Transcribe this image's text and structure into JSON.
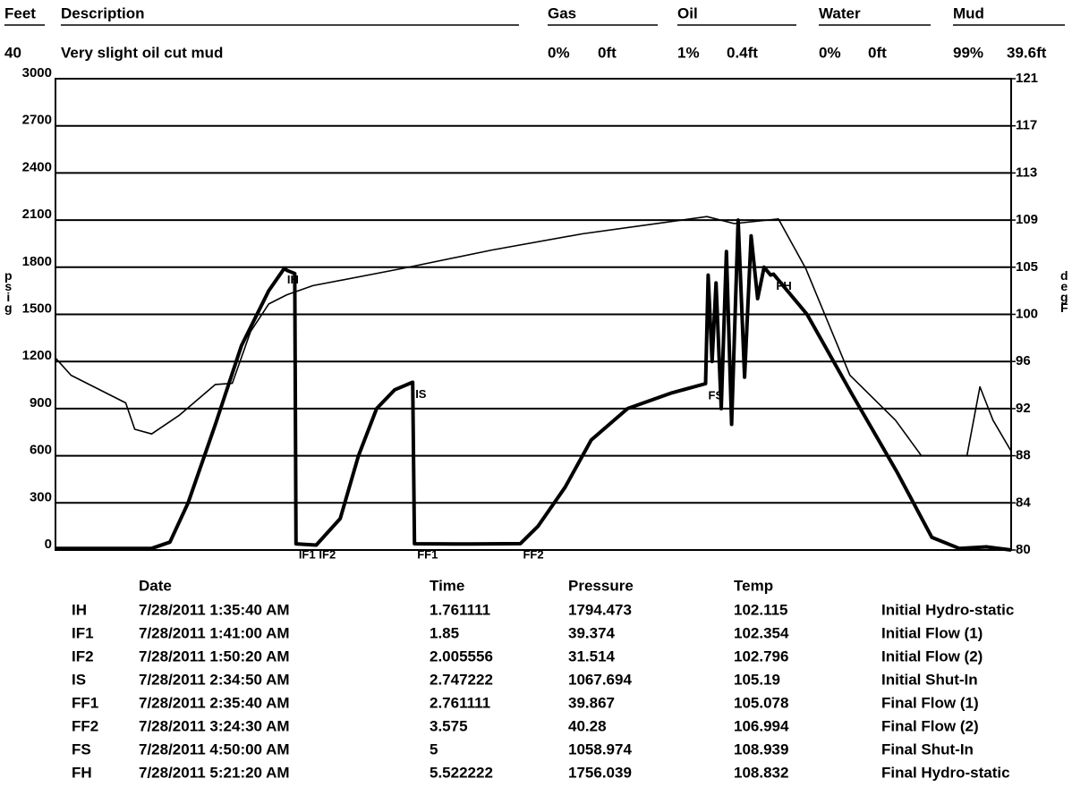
{
  "recovery": {
    "header": [
      "Feet",
      "Description",
      "Gas",
      "Oil",
      "Water",
      "Mud"
    ],
    "row": [
      "40",
      "Very slight oil cut mud",
      "0%",
      "0ft",
      "1%",
      "0.4ft",
      "0%",
      "0ft",
      "99%",
      "39.6ft"
    ]
  },
  "chart_data": {
    "type": "line",
    "xlim": [
      0,
      7.35
    ],
    "ylim": [
      0,
      3000
    ],
    "yticks": [
      0,
      300,
      600,
      900,
      1200,
      1500,
      1800,
      2100,
      2400,
      2700,
      3000
    ],
    "y2lim": [
      80,
      121
    ],
    "y2ticks": [
      80,
      {
        "value": 84.1,
        "label": "84"
      },
      {
        "value": 88.2,
        "label": "88"
      },
      {
        "value": 92.3,
        "label": "92"
      },
      {
        "value": 96.4,
        "label": "96"
      },
      {
        "value": 100.5,
        "label": "100"
      },
      {
        "value": 104.6,
        "label": "105"
      },
      {
        "value": 108.7,
        "label": "109"
      },
      {
        "value": 112.8,
        "label": "113"
      },
      {
        "value": 116.9,
        "label": "117"
      },
      121
    ],
    "ylabel": "psig",
    "y2label": "degF",
    "grid": true,
    "series": [
      {
        "name": "Pressure",
        "color": "#000000",
        "x": [
          0,
          0.74,
          0.88,
          1.02,
          1.23,
          1.43,
          1.64,
          1.761111,
          1.78,
          1.84,
          1.85,
          2.005556,
          2.19,
          2.33,
          2.47,
          2.61,
          2.747222,
          2.761111,
          3.2,
          3.575,
          3.71,
          3.92,
          4.12,
          4.4,
          4.74,
          5,
          5.02,
          5.05,
          5.08,
          5.12,
          5.16,
          5.2,
          5.25,
          5.3,
          5.35,
          5.4,
          5.45,
          5.5,
          5.522222,
          5.78,
          6.12,
          6.47,
          6.74,
          6.95,
          7.16,
          7.35
        ],
        "values": [
          10,
          10,
          50,
          300,
          800,
          1300,
          1650,
          1794.473,
          1780,
          1760,
          39.374,
          31.514,
          200,
          600,
          900,
          1020,
          1067.694,
          39.867,
          38,
          40.28,
          150,
          400,
          700,
          900,
          1000,
          1058.974,
          1750,
          1200,
          1700,
          900,
          1900,
          800,
          2100,
          1100,
          2000,
          1600,
          1800,
          1750,
          1756.039,
          1500,
          1000,
          500,
          80,
          10,
          20,
          0
        ]
      },
      {
        "name": "Temperature",
        "color": "#000000",
        "axis": "y2",
        "x": [
          0,
          0.12,
          0.54,
          0.61,
          0.74,
          0.95,
          1.23,
          1.36,
          1.5,
          1.64,
          1.78,
          1.98,
          2.67,
          3.36,
          4.05,
          5.01,
          5.22,
          5.56,
          5.77,
          6.11,
          6.46,
          6.66,
          7.01,
          7.11,
          7.21,
          7.35
        ],
        "values": [
          96.7,
          95.2,
          92.8,
          90.5,
          90.1,
          91.7,
          94.4,
          94.5,
          99,
          101.4,
          102.2,
          103,
          104.5,
          106.1,
          107.5,
          109,
          108.4,
          108.8,
          104.5,
          95.2,
          91.3,
          88.2,
          88.2,
          94.2,
          91.3,
          88.6
        ]
      }
    ]
  },
  "events": {
    "header": [
      "Date",
      "Time",
      "Pressure",
      "Temp"
    ],
    "rows": [
      [
        "IH",
        "7/28/2011 1:35:40 AM",
        1.761111,
        1794.473,
        102.115,
        "Initial Hydro-static"
      ],
      [
        "IF1",
        "7/28/2011 1:41:00 AM",
        1.85,
        39.374,
        102.354,
        "Initial Flow (1)"
      ],
      [
        "IF2",
        "7/28/2011 1:50:20 AM",
        2.005556,
        31.514,
        102.796,
        "Initial Flow (2)"
      ],
      [
        "IS",
        "7/28/2011 2:34:50 AM",
        2.747222,
        1067.694,
        105.19,
        "Initial Shut-In"
      ],
      [
        "FF1",
        "7/28/2011 2:35:40 AM",
        2.761111,
        39.867,
        105.078,
        "Final Flow (1)"
      ],
      [
        "FF2",
        "7/28/2011 3:24:30 AM",
        3.575,
        40.28,
        106.994,
        "Final Flow (2)"
      ],
      [
        "FS",
        "7/28/2011 4:50:00 AM",
        5,
        1058.974,
        108.939,
        "Final Shut-In"
      ],
      [
        "FH",
        "7/28/2011 5:21:20 AM",
        5.522222,
        1756.039,
        108.832,
        "Final Hydro-static"
      ]
    ]
  }
}
